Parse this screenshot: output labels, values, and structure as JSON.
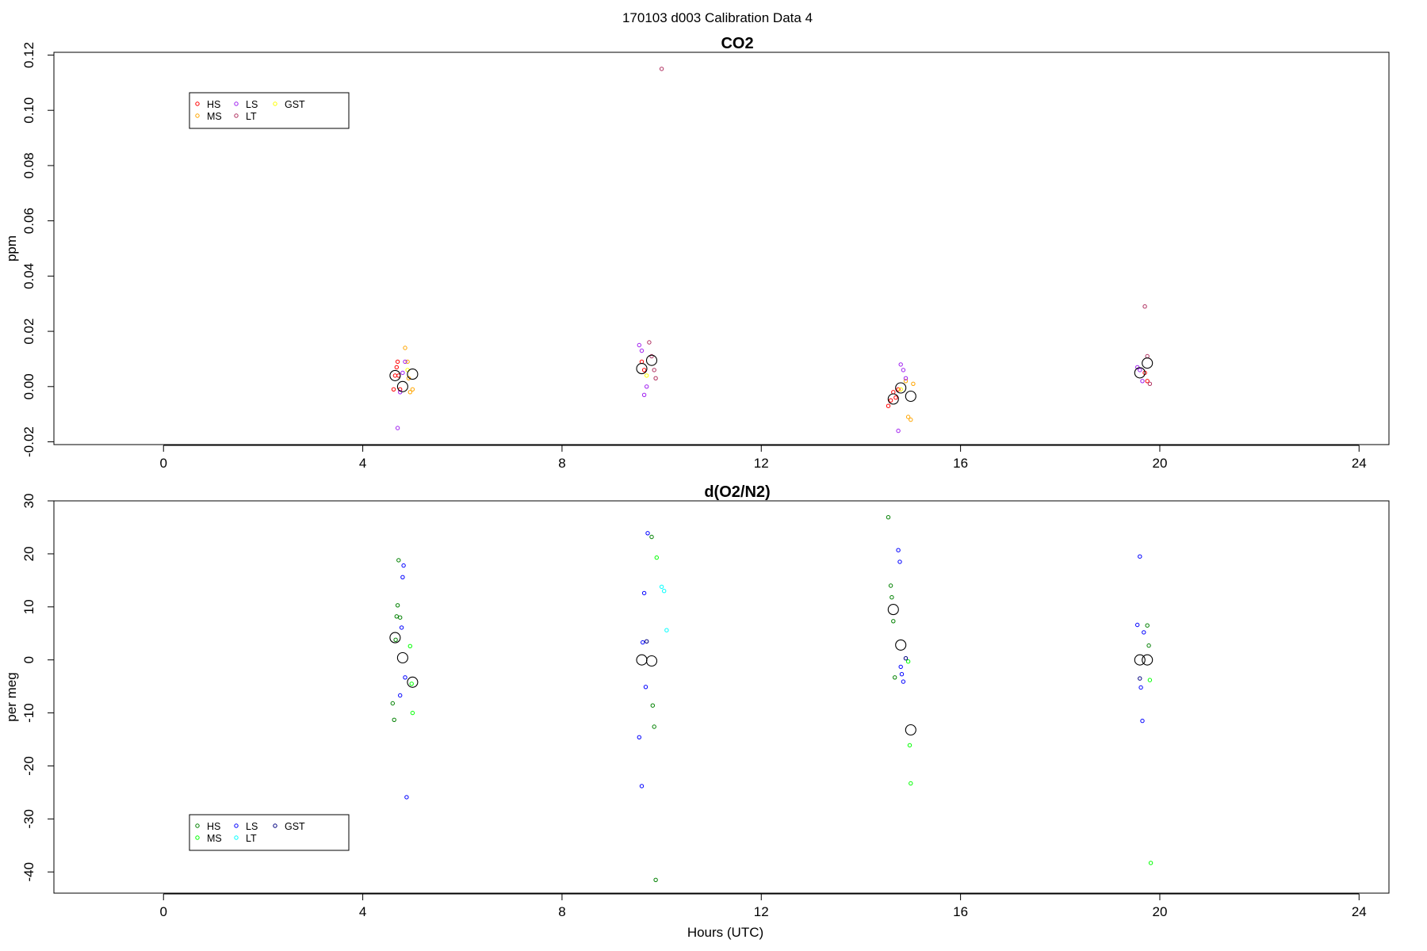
{
  "title": "170103   d003   Calibration Data 4",
  "chart_data": [
    {
      "type": "scatter",
      "title": "CO2",
      "xlabel": "",
      "ylabel": "ppm",
      "xlim": [
        -2.2,
        24.6
      ],
      "ylim": [
        -0.021,
        0.121
      ],
      "xticks": [
        0,
        4,
        8,
        12,
        16,
        20,
        24
      ],
      "yticks": [
        -0.02,
        0.0,
        0.02,
        0.04,
        0.06,
        0.08,
        0.1,
        0.12
      ],
      "ytick_labels": [
        "-0.02",
        "0.00",
        "0.02",
        "0.04",
        "0.06",
        "0.08",
        "0.10",
        "0.12"
      ],
      "legend": {
        "position": "top-left",
        "entries": [
          {
            "label": "HS",
            "color": "#ff0000"
          },
          {
            "label": "MS",
            "color": "#ffa500"
          },
          {
            "label": "LS",
            "color": "#a020f0"
          },
          {
            "label": "LT",
            "color": "#b03060"
          },
          {
            "label": "GST",
            "color": "#ffff00"
          }
        ]
      },
      "series": [
        {
          "name": "HS",
          "color": "#ff0000",
          "x": [
            4.62,
            4.65,
            4.68,
            4.7,
            4.72,
            4.75,
            9.6,
            9.65,
            14.55,
            14.6,
            14.65,
            14.7,
            14.75,
            19.7,
            19.75
          ],
          "y": [
            -0.001,
            0.004,
            0.007,
            0.009,
            0.004,
            -0.001,
            0.009,
            0.006,
            -0.007,
            -0.005,
            -0.002,
            -0.004,
            -0.001,
            0.005,
            0.002
          ]
        },
        {
          "name": "MS",
          "color": "#ffa500",
          "x": [
            4.85,
            4.9,
            4.92,
            4.95,
            5.0,
            14.9,
            14.95,
            15.0,
            15.05
          ],
          "y": [
            0.014,
            0.009,
            0.003,
            -0.002,
            -0.001,
            0.002,
            -0.011,
            -0.012,
            0.001
          ]
        },
        {
          "name": "LS",
          "color": "#a020f0",
          "x": [
            4.7,
            4.75,
            4.8,
            4.85,
            9.55,
            9.6,
            9.65,
            9.7,
            14.75,
            14.8,
            14.85,
            14.9,
            19.55,
            19.6,
            19.65
          ],
          "y": [
            -0.015,
            -0.002,
            0.005,
            0.009,
            0.015,
            0.013,
            -0.003,
            -0.0,
            -0.016,
            0.008,
            0.006,
            0.003,
            0.007,
            0.006,
            0.002
          ]
        },
        {
          "name": "LT",
          "color": "#b03060",
          "x": [
            9.75,
            9.8,
            9.85,
            9.88,
            10.0,
            19.7,
            19.75,
            19.8
          ],
          "y": [
            0.016,
            0.011,
            0.006,
            0.003,
            0.115,
            0.029,
            0.011,
            0.001
          ]
        },
        {
          "name": "GST",
          "color": "#ffff00",
          "x": [
            4.9,
            9.7,
            14.8
          ],
          "y": [
            0.006,
            0.004,
            -0.001
          ]
        },
        {
          "name": "mean",
          "color": "#000000",
          "x": [
            4.65,
            4.8,
            5.0,
            9.6,
            9.8,
            14.65,
            14.8,
            15.0,
            19.6,
            19.75
          ],
          "y": [
            0.004,
            0.0,
            0.0045,
            0.0065,
            0.0095,
            -0.0045,
            -0.0005,
            -0.0035,
            0.005,
            0.0085
          ]
        }
      ]
    },
    {
      "type": "scatter",
      "title": "d(O2/N2)",
      "xlabel": "Hours (UTC)",
      "ylabel": "per meg",
      "xlim": [
        -2.2,
        24.6
      ],
      "ylim": [
        -44,
        30
      ],
      "xticks": [
        0,
        4,
        8,
        12,
        16,
        20,
        24
      ],
      "yticks": [
        -40,
        -30,
        -20,
        -10,
        0,
        10,
        20,
        30
      ],
      "ytick_labels": [
        "-40",
        "-30",
        "-20",
        "-10",
        "0",
        "10",
        "20",
        "30"
      ],
      "legend": {
        "position": "bottom-left",
        "entries": [
          {
            "label": "HS",
            "color": "#008000"
          },
          {
            "label": "MS",
            "color": "#00ff00"
          },
          {
            "label": "LS",
            "color": "#0000ff"
          },
          {
            "label": "LT",
            "color": "#00ffff"
          },
          {
            "label": "GST",
            "color": "#000080"
          }
        ]
      },
      "series": [
        {
          "name": "HS",
          "color": "#008000",
          "x": [
            4.6,
            4.63,
            4.66,
            4.68,
            4.7,
            4.72,
            4.75,
            9.8,
            9.82,
            9.85,
            9.88,
            14.55,
            14.6,
            14.62,
            14.65,
            14.68,
            19.75,
            19.78
          ],
          "y": [
            -8.2,
            -11.3,
            3.8,
            8.2,
            10.3,
            18.8,
            8.0,
            23.2,
            -8.6,
            -12.6,
            -41.5,
            26.9,
            14.0,
            11.8,
            7.3,
            -3.3,
            6.5,
            2.7
          ]
        },
        {
          "name": "MS",
          "color": "#00ff00",
          "x": [
            4.95,
            4.98,
            5.0,
            9.9,
            14.95,
            14.98,
            15.0,
            19.8,
            19.82
          ],
          "y": [
            2.6,
            -4.5,
            -10.0,
            19.3,
            -0.3,
            -16.1,
            -23.3,
            -3.8,
            -38.3
          ]
        },
        {
          "name": "LS",
          "color": "#0000ff",
          "x": [
            4.75,
            4.78,
            4.8,
            4.82,
            4.85,
            4.88,
            9.55,
            9.6,
            9.62,
            9.65,
            9.68,
            9.72,
            14.75,
            14.78,
            14.8,
            14.82,
            14.85,
            19.55,
            19.6,
            19.62,
            19.65,
            19.68
          ],
          "y": [
            -6.7,
            6.1,
            15.6,
            17.8,
            -3.3,
            -25.9,
            -14.6,
            -23.8,
            3.3,
            12.6,
            -5.1,
            23.9,
            20.7,
            18.5,
            -1.3,
            -2.7,
            -4.1,
            6.6,
            19.5,
            -5.2,
            -11.5,
            5.2
          ]
        },
        {
          "name": "LT",
          "color": "#00ffff",
          "x": [
            10.0,
            10.05,
            10.1
          ],
          "y": [
            13.8,
            13.0,
            5.6
          ]
        },
        {
          "name": "GST",
          "color": "#000080",
          "x": [
            9.7,
            14.9,
            19.6
          ],
          "y": [
            3.5,
            0.3,
            -3.5
          ]
        },
        {
          "name": "mean",
          "color": "#000000",
          "x": [
            4.65,
            4.8,
            5.0,
            9.6,
            9.8,
            14.65,
            14.8,
            15.0,
            19.6,
            19.75
          ],
          "y": [
            4.2,
            0.4,
            -4.2,
            0.0,
            -0.2,
            9.5,
            2.8,
            -13.2,
            0.0,
            0.0
          ]
        }
      ]
    }
  ]
}
